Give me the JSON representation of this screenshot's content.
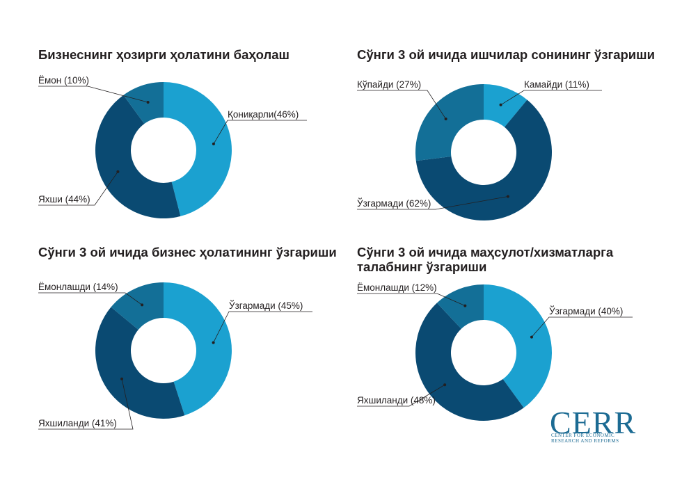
{
  "colors": {
    "light": "#1ba1d0",
    "dark": "#0a4a72",
    "mid": "#136f97",
    "text": "#231f20"
  },
  "chart_data": [
    {
      "type": "pie",
      "title": "Бизнеснинг ҳозирги ҳолатини баҳолаш",
      "labels": [
        "Қониқарли(46%)",
        "Яхши (44%)",
        "Ёмон (10%)"
      ],
      "values": [
        46,
        44,
        10
      ],
      "colors": [
        "#1ba1d0",
        "#0a4a72",
        "#136f97"
      ]
    },
    {
      "type": "pie",
      "title": "Сўнги 3 ой ичида ишчилар сонининг ўзгариши",
      "labels": [
        "Камайди (11%)",
        "Ўзгармади (62%)",
        "Кўпайди (27%)"
      ],
      "values": [
        11,
        62,
        27
      ],
      "colors": [
        "#1ba1d0",
        "#0a4a72",
        "#136f97"
      ]
    },
    {
      "type": "pie",
      "title": "Сўнги 3 ой ичида бизнес ҳолатининг ўзгариши",
      "labels": [
        "Ўзгармади (45%)",
        "Яхшиланди (41%)",
        "Ёмонлашди (14%)"
      ],
      "values": [
        45,
        41,
        14
      ],
      "colors": [
        "#1ba1d0",
        "#0a4a72",
        "#136f97"
      ]
    },
    {
      "type": "pie",
      "title": "Сўнги 3 ой ичида маҳсулот/хизматларга талабнинг ўзгариши",
      "labels": [
        "Ўзгармади (40%)",
        "Яхшиланди (48%)",
        "Ёмонлашди (12%)"
      ],
      "values": [
        40,
        48,
        12
      ],
      "colors": [
        "#1ba1d0",
        "#0a4a72",
        "#136f97"
      ]
    }
  ],
  "logo": {
    "name": "CERR",
    "line1": "CENTER FOR ECONOMIC",
    "line2": "RESEARCH AND REFORMS"
  }
}
